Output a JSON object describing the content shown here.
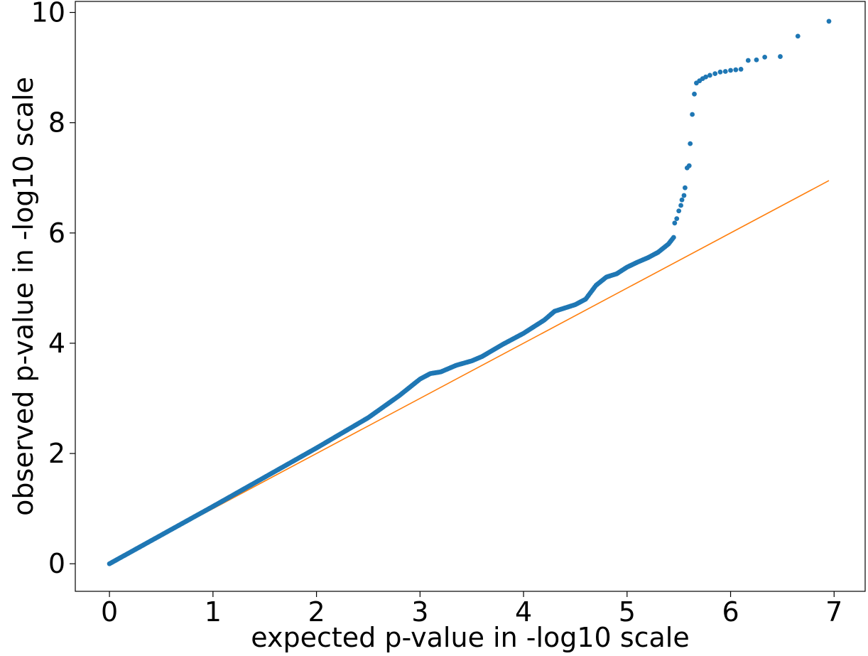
{
  "chart_data": {
    "type": "scatter",
    "title": "",
    "xlabel": "expected p-value in -log10 scale",
    "ylabel": "observed p-value in -log10 scale",
    "xlim": [
      -0.33,
      7.3
    ],
    "ylim": [
      -0.5,
      10.2
    ],
    "xticks": [
      0,
      1,
      2,
      3,
      4,
      5,
      6,
      7
    ],
    "yticks": [
      0,
      2,
      4,
      6,
      8,
      10
    ],
    "grid": false,
    "colors": {
      "points": "#1f77b4",
      "reference_line": "#ff7f0e"
    },
    "reference_line": {
      "x": [
        0,
        6.95
      ],
      "y": [
        0,
        6.95
      ]
    },
    "curve_points": [
      [
        0.0,
        0.0
      ],
      [
        0.5,
        0.52
      ],
      [
        1.0,
        1.04
      ],
      [
        1.5,
        1.57
      ],
      [
        2.0,
        2.1
      ],
      [
        2.5,
        2.65
      ],
      [
        2.8,
        3.05
      ],
      [
        3.0,
        3.35
      ],
      [
        3.1,
        3.45
      ],
      [
        3.2,
        3.48
      ],
      [
        3.35,
        3.6
      ],
      [
        3.5,
        3.68
      ],
      [
        3.6,
        3.76
      ],
      [
        3.8,
        3.98
      ],
      [
        4.0,
        4.18
      ],
      [
        4.2,
        4.42
      ],
      [
        4.3,
        4.58
      ],
      [
        4.5,
        4.7
      ],
      [
        4.6,
        4.8
      ],
      [
        4.7,
        5.05
      ],
      [
        4.8,
        5.2
      ],
      [
        4.9,
        5.26
      ],
      [
        5.0,
        5.38
      ],
      [
        5.1,
        5.47
      ],
      [
        5.2,
        5.55
      ],
      [
        5.3,
        5.65
      ],
      [
        5.4,
        5.8
      ],
      [
        5.45,
        5.92
      ]
    ],
    "tail_points": [
      [
        5.46,
        6.18
      ],
      [
        5.48,
        6.26
      ],
      [
        5.5,
        6.4
      ],
      [
        5.52,
        6.5
      ],
      [
        5.53,
        6.6
      ],
      [
        5.55,
        6.68
      ],
      [
        5.56,
        6.82
      ],
      [
        5.58,
        7.18
      ],
      [
        5.6,
        7.22
      ],
      [
        5.61,
        7.62
      ],
      [
        5.63,
        8.15
      ],
      [
        5.65,
        8.52
      ],
      [
        5.67,
        8.72
      ],
      [
        5.7,
        8.76
      ],
      [
        5.73,
        8.8
      ],
      [
        5.76,
        8.83
      ],
      [
        5.8,
        8.86
      ],
      [
        5.85,
        8.89
      ],
      [
        5.9,
        8.92
      ],
      [
        5.95,
        8.93
      ],
      [
        6.0,
        8.95
      ],
      [
        6.05,
        8.96
      ],
      [
        6.1,
        8.97
      ],
      [
        6.17,
        9.13
      ],
      [
        6.25,
        9.14
      ],
      [
        6.33,
        9.19
      ],
      [
        6.48,
        9.2
      ],
      [
        6.65,
        9.57
      ],
      [
        6.95,
        9.84
      ]
    ]
  }
}
